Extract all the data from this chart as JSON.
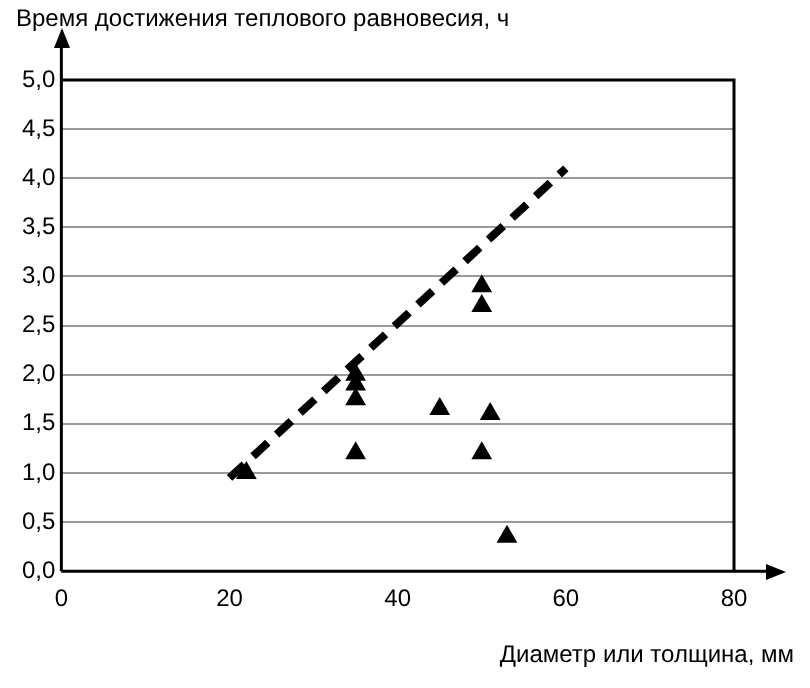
{
  "chart_data": {
    "type": "scatter",
    "xlabel": "Диаметр или толщина, мм",
    "ylabel": "Время достижения теплового равновесия, ч",
    "xlim": [
      0,
      80
    ],
    "xticks": [
      0,
      20,
      40,
      60,
      80
    ],
    "ylim": [
      0,
      5
    ],
    "yticks": [
      {
        "value": 0,
        "label": "0,0"
      },
      {
        "value": 0.5,
        "label": "0,5"
      },
      {
        "value": 1,
        "label": "1,0"
      },
      {
        "value": 1.5,
        "label": "1,5"
      },
      {
        "value": 2,
        "label": "2,0"
      },
      {
        "value": 2.5,
        "label": "2,5"
      },
      {
        "value": 3,
        "label": "3,0"
      },
      {
        "value": 3.5,
        "label": "3,5"
      },
      {
        "value": 4,
        "label": "4,0"
      },
      {
        "value": 4.5,
        "label": "4,5"
      },
      {
        "value": 5,
        "label": "5,0"
      }
    ],
    "grid": "y",
    "legend": false,
    "series": [
      {
        "color": "#000000",
        "marker": "triangle",
        "x": [
          22,
          35,
          35,
          35,
          35,
          45,
          50,
          50,
          50,
          51,
          53
        ],
        "values": [
          1.0,
          2.0,
          1.9,
          1.75,
          1.2,
          1.65,
          2.9,
          2.7,
          1.2,
          1.6,
          0.35
        ]
      },
      {
        "type": "line",
        "color": "#000000",
        "marker": "none",
        "line_style": "dashed",
        "x": [
          20,
          60
        ],
        "values": [
          0.95,
          4.1
        ]
      }
    ]
  }
}
